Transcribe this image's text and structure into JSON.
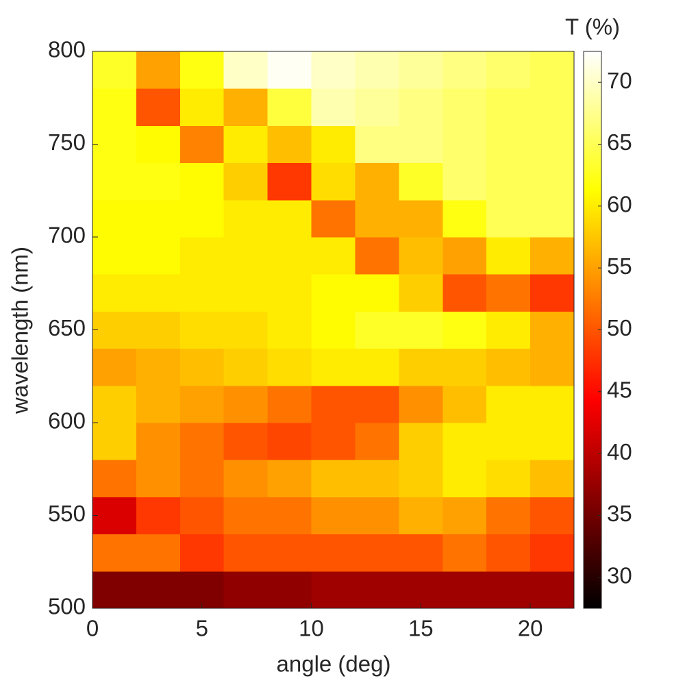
{
  "chart_data": {
    "type": "heatmap",
    "x_label": "angle (deg)",
    "y_label": "wavelength (nm)",
    "colorbar_label": "T (%)",
    "colormap": "hot",
    "x": [
      1,
      3,
      5,
      7,
      9,
      11,
      13,
      15,
      17,
      19,
      21
    ],
    "y": [
      510,
      530,
      550,
      570,
      590,
      610,
      630,
      650,
      670,
      690,
      710,
      730,
      750,
      770,
      790
    ],
    "z": [
      [
        36,
        36,
        36,
        37,
        37,
        38,
        38,
        38,
        38,
        38,
        38
      ],
      [
        52,
        52,
        48,
        50,
        50,
        50,
        50,
        50,
        52,
        50,
        48
      ],
      [
        42,
        48,
        50,
        52,
        52,
        54,
        54,
        56,
        55,
        52,
        50
      ],
      [
        52,
        54,
        52,
        54,
        55,
        57,
        57,
        58,
        60,
        59,
        57
      ],
      [
        58,
        54,
        52,
        50,
        49,
        50,
        52,
        58,
        60,
        60,
        60
      ],
      [
        58,
        56,
        55,
        54,
        52,
        50,
        50,
        54,
        57,
        60,
        60
      ],
      [
        55,
        56,
        57,
        58,
        59,
        60,
        60,
        58,
        58,
        57,
        56
      ],
      [
        58,
        58,
        59,
        59,
        60,
        61,
        63,
        63,
        62,
        60,
        56
      ],
      [
        60,
        60,
        60,
        60,
        60,
        61,
        61,
        58,
        50,
        52,
        48
      ],
      [
        61,
        61,
        60,
        60,
        60,
        60,
        52,
        57,
        55,
        60,
        56
      ],
      [
        61,
        61,
        61,
        60,
        60,
        52,
        56,
        56,
        62,
        65,
        65
      ],
      [
        62,
        62,
        61,
        58,
        48,
        59,
        56,
        63,
        66,
        65,
        65
      ],
      [
        62,
        61,
        53,
        60,
        57,
        60,
        67,
        67,
        66,
        65,
        65
      ],
      [
        62,
        50,
        60,
        56,
        64,
        69,
        68,
        67,
        66,
        65,
        65
      ],
      [
        63,
        55,
        62,
        70,
        72,
        70,
        69,
        68,
        67,
        66,
        65
      ]
    ],
    "xlim": [
      0,
      22
    ],
    "xticks": [
      0,
      5,
      10,
      15,
      20
    ],
    "ylim": [
      500,
      800
    ],
    "yticks": [
      500,
      550,
      600,
      650,
      700,
      750,
      800
    ],
    "clim": [
      27.5,
      72.5
    ],
    "cticks": [
      30,
      35,
      40,
      45,
      50,
      55,
      60,
      65,
      70
    ]
  }
}
